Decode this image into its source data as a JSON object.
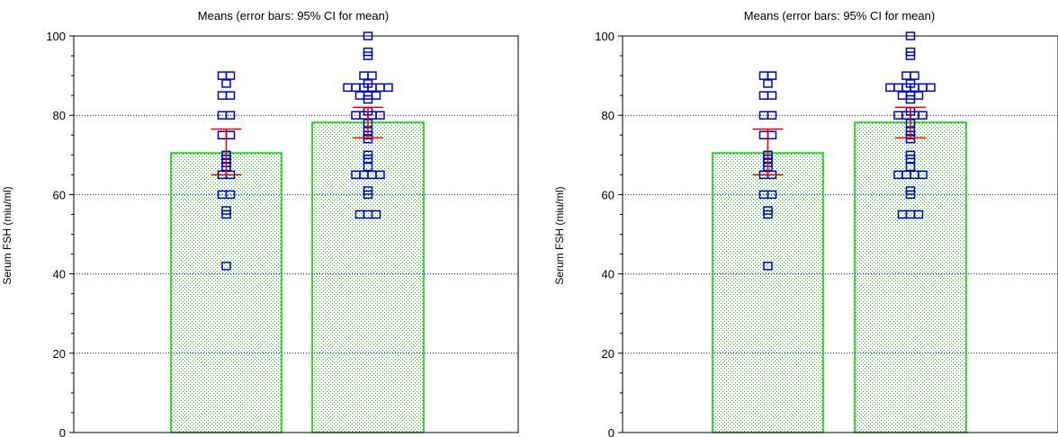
{
  "colors": {
    "bar_outline": "#00cc00",
    "bar_dots": "#00cc00",
    "points": "#0000cc",
    "error_bars": "#ee0000",
    "gridlines": "#0000aa",
    "frame": "#000000"
  },
  "chart_data": [
    {
      "type": "bar",
      "title": "Means  (error bars: 95% CI for mean)",
      "xlabel": "",
      "ylabel": "Serum FSH (miu/ml)",
      "ylim": [
        0,
        100
      ],
      "yticks": [
        0,
        20,
        40,
        60,
        80,
        100
      ],
      "grid": true,
      "categories": [
        "",
        ""
      ],
      "values": [
        70.5,
        78.2
      ],
      "error_bars": [
        {
          "low": 65,
          "high": 76.5
        },
        {
          "low": 74.3,
          "high": 82
        }
      ],
      "points": [
        [
          42,
          55,
          56,
          60,
          60,
          65,
          65,
          67,
          68,
          69,
          70,
          75,
          75,
          80,
          80,
          85,
          85,
          88,
          90,
          90
        ],
        [
          55,
          55,
          55,
          60,
          61,
          65,
          65,
          65,
          65,
          67,
          69,
          70,
          74,
          75,
          76,
          78,
          80,
          80,
          80,
          80,
          81,
          84,
          85,
          85,
          85,
          87,
          87,
          87,
          87,
          87,
          87,
          88,
          90,
          90,
          95,
          96,
          100
        ]
      ]
    },
    {
      "type": "bar",
      "title": "Means  (error bars: 95% CI for mean)",
      "xlabel": "",
      "ylabel": "Serum FSH (miu/ml)",
      "ylim": [
        0,
        100
      ],
      "yticks": [
        0,
        20,
        40,
        60,
        80,
        100
      ],
      "grid": true,
      "categories": [
        "",
        ""
      ],
      "values": [
        70.5,
        78.2
      ],
      "error_bars": [
        {
          "low": 65,
          "high": 76.5
        },
        {
          "low": 74.3,
          "high": 82
        }
      ],
      "points": [
        [
          42,
          55,
          56,
          60,
          60,
          65,
          65,
          67,
          68,
          69,
          70,
          75,
          75,
          80,
          80,
          85,
          85,
          88,
          90,
          90
        ],
        [
          55,
          55,
          55,
          60,
          61,
          65,
          65,
          65,
          65,
          67,
          69,
          70,
          74,
          75,
          76,
          78,
          80,
          80,
          80,
          80,
          81,
          84,
          85,
          85,
          85,
          87,
          87,
          87,
          87,
          87,
          87,
          88,
          90,
          90,
          95,
          96,
          100
        ]
      ]
    }
  ]
}
